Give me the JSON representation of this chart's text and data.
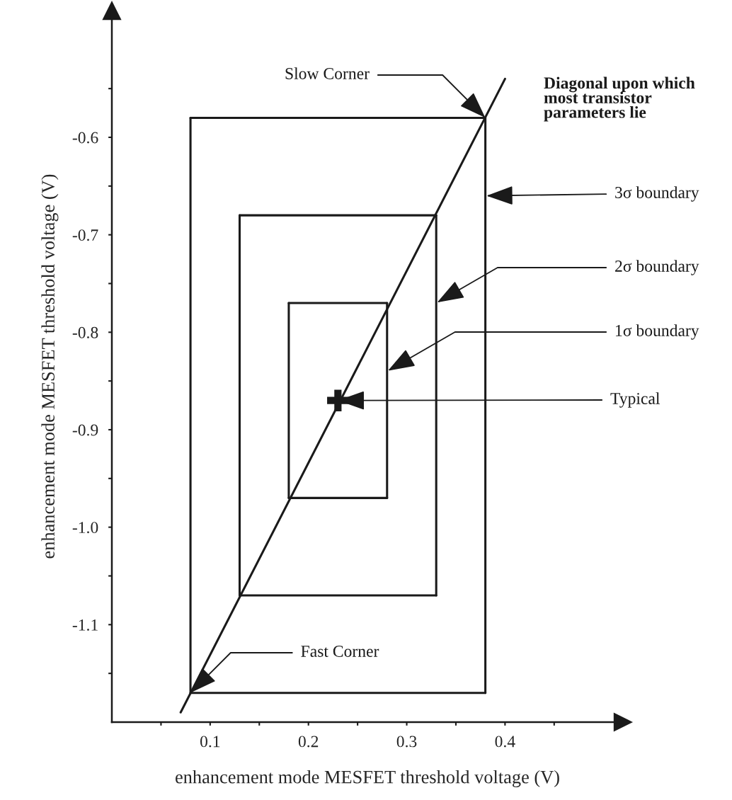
{
  "chart_data": {
    "type": "line",
    "xlabel": "enhancement mode MESFET threshold voltage (V)",
    "ylabel": "enhancement mode MESFET threshold voltage (V)",
    "xlim": [
      0,
      0.52
    ],
    "ylim": [
      -1.2,
      -0.47
    ],
    "xticks": [
      {
        "value": 0.05,
        "label": null
      },
      0.1,
      {
        "value": 0.15,
        "label": null
      },
      0.2,
      {
        "value": 0.25,
        "label": null
      },
      0.3,
      {
        "value": 0.35,
        "label": null
      },
      0.4,
      {
        "value": 0.45,
        "label": null
      }
    ],
    "yticks": [
      {
        "value": -1.15,
        "label": null
      },
      -1.1,
      {
        "value": -1.05,
        "label": null
      },
      {
        "value": -1.0,
        "label": "-1.0"
      },
      {
        "value": -0.95,
        "label": null
      },
      -0.9,
      {
        "value": -0.85,
        "label": null
      },
      -0.8,
      {
        "value": -0.75,
        "label": null
      },
      -0.7,
      {
        "value": -0.65,
        "label": null
      },
      -0.6,
      {
        "value": -0.55,
        "label": null
      }
    ],
    "grid": false,
    "series": [
      {
        "type": "line",
        "color": "#1a1a1a",
        "x": [
          0.08,
          0.38
        ],
        "values": [
          -0.58,
          -0.58
        ]
      },
      {
        "type": "line",
        "color": "#1a1a1a",
        "x": [
          0.08,
          0.38
        ],
        "values": [
          -1.17,
          -1.17
        ]
      },
      {
        "type": "line",
        "color": "#1a1a1a",
        "x": [
          0.08,
          0.08
        ],
        "values": [
          -1.17,
          -0.58
        ]
      },
      {
        "type": "line",
        "color": "#1a1a1a",
        "x": [
          0.38,
          0.38
        ],
        "values": [
          -1.17,
          -0.58
        ]
      },
      {
        "type": "line",
        "color": "#1a1a1a",
        "x": [
          0.13,
          0.33
        ],
        "values": [
          -0.68,
          -0.68
        ]
      },
      {
        "type": "line",
        "color": "#1a1a1a",
        "x": [
          0.13,
          0.33
        ],
        "values": [
          -1.07,
          -1.07
        ]
      },
      {
        "type": "line",
        "color": "#1a1a1a",
        "x": [
          0.13,
          0.13
        ],
        "values": [
          -1.07,
          -0.68
        ]
      },
      {
        "type": "line",
        "color": "#1a1a1a",
        "x": [
          0.33,
          0.33
        ],
        "values": [
          -1.07,
          -0.68
        ]
      },
      {
        "type": "line",
        "color": "#1a1a1a",
        "x": [
          0.18,
          0.28
        ],
        "values": [
          -0.77,
          -0.77
        ]
      },
      {
        "type": "line",
        "color": "#1a1a1a",
        "x": [
          0.18,
          0.28
        ],
        "values": [
          -0.97,
          -0.97
        ]
      },
      {
        "type": "line",
        "color": "#1a1a1a",
        "x": [
          0.18,
          0.18
        ],
        "values": [
          -0.97,
          -0.77
        ]
      },
      {
        "type": "line",
        "color": "#1a1a1a",
        "x": [
          0.28,
          0.28
        ],
        "values": [
          -0.97,
          -0.77
        ]
      },
      {
        "type": "line",
        "color": "#1a1a1a",
        "x": [
          0.07,
          0.4
        ],
        "values": [
          -1.19,
          -0.54
        ]
      },
      {
        "type": "scatter",
        "color": "#1a1a1a",
        "marker": "cross",
        "x": [
          0.23
        ],
        "values": [
          -0.87
        ]
      }
    ],
    "annotations": [
      {
        "text": "Slow Corner",
        "x": 0.38,
        "y": -0.58
      },
      "Diagonal upon which\nmost transistor\nparameters lie",
      {
        "text": "3σ boundary",
        "x": 0.38,
        "y": -0.66
      },
      {
        "text": "2σ boundary",
        "x": 0.33,
        "y": -0.77
      },
      {
        "text": "1σ boundary",
        "x": 0.28,
        "y": -0.84
      },
      {
        "text": "Typical",
        "x": 0.23,
        "y": -0.87
      },
      {
        "text": "Fast Corner",
        "x": 0.08,
        "y": -1.17
      }
    ]
  }
}
